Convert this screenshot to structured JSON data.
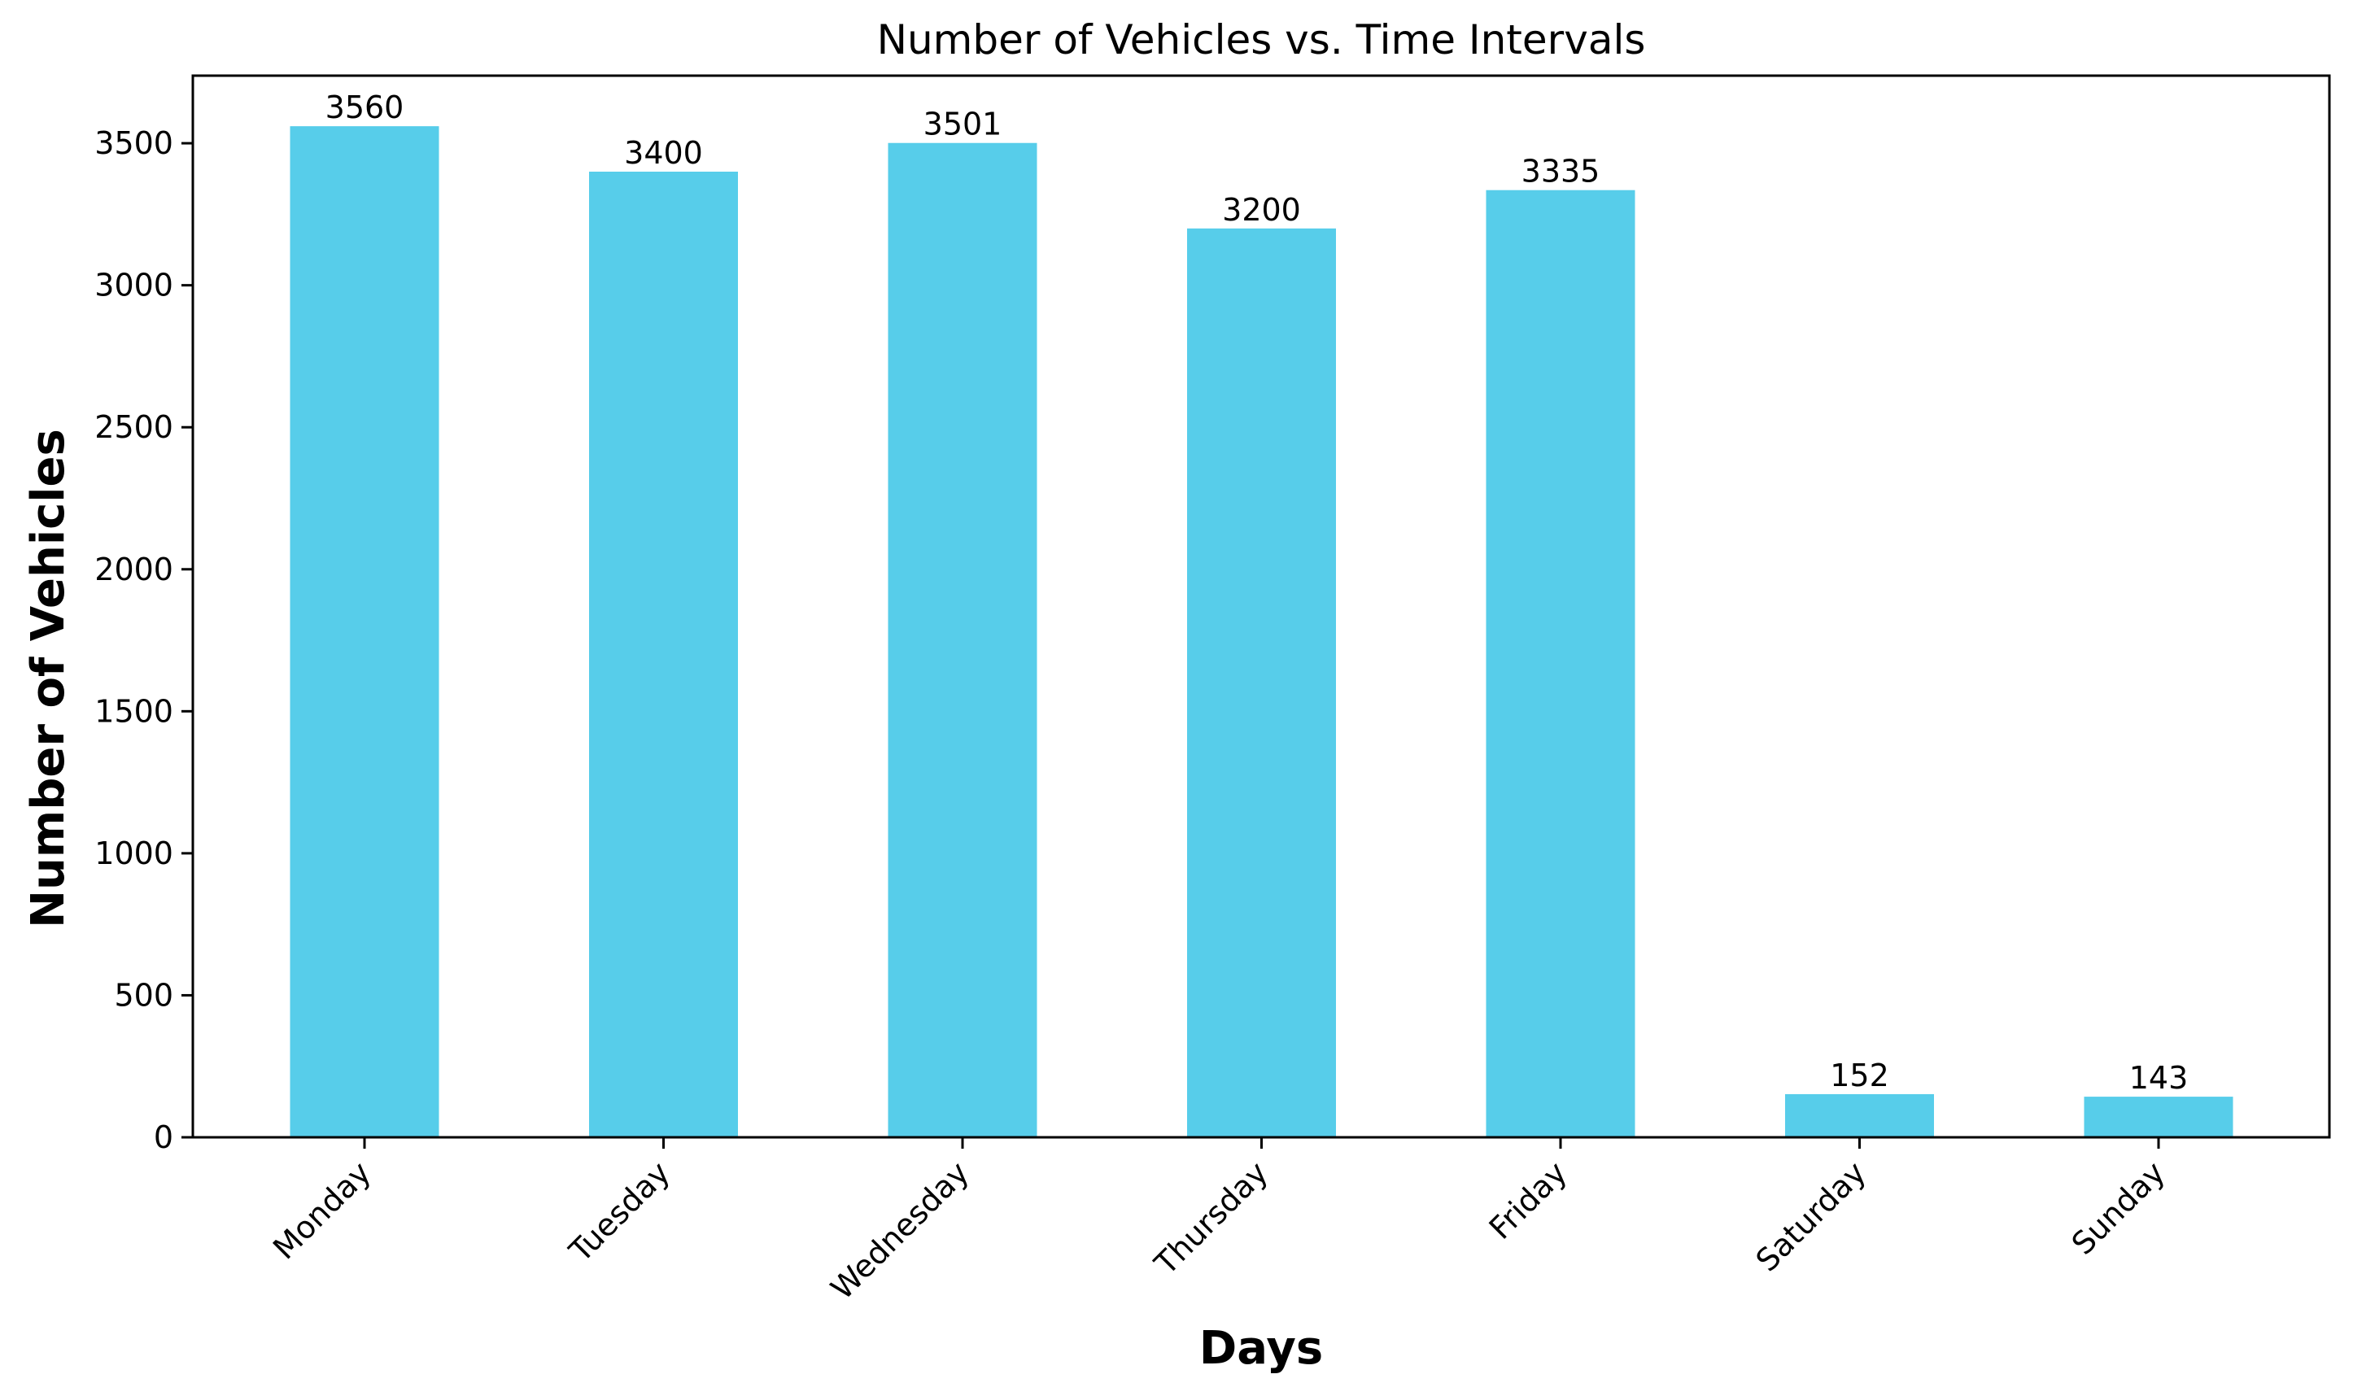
{
  "chart_data": {
    "type": "bar",
    "title": "Number of Vehicles vs. Time Intervals",
    "xlabel": "Days",
    "ylabel": "Number of Vehicles",
    "categories": [
      "Monday",
      "Tuesday",
      "Wednesday",
      "Thursday",
      "Friday",
      "Saturday",
      "Sunday"
    ],
    "values": [
      3560,
      3400,
      3501,
      3200,
      3335,
      152,
      143
    ],
    "data_labels": [
      "3560",
      "3400",
      "3501",
      "3200",
      "3335",
      "152",
      "143"
    ],
    "ylim": [
      0,
      3738
    ],
    "yticks": [
      0,
      500,
      1000,
      1500,
      2000,
      2500,
      3000,
      3500
    ],
    "ytick_labels": [
      "0",
      "500",
      "1000",
      "1500",
      "2000",
      "2500",
      "3000",
      "3500"
    ],
    "bar_color": "#57CDEA",
    "grid": false,
    "legend": "none"
  }
}
